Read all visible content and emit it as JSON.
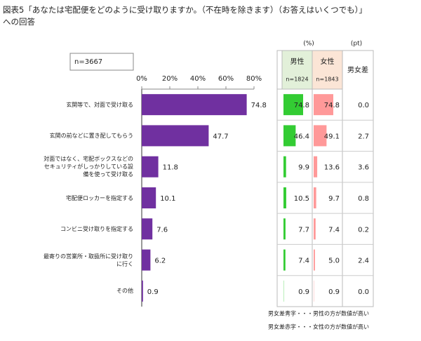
{
  "title": [
    "図表5「あなたは宅配便をどのように受け取りますか。（不在時を除きます）（お答えはいくつでも）」",
    "への回答"
  ],
  "chart_data": {
    "type": "bar",
    "orientation": "horizontal",
    "sample_label": "n=3667",
    "categories": [
      "玄関等で、対面で受け取る",
      "玄関の前などに置き配してもらう",
      "対面ではなく、宅配ボックスなどのセキュリティがしっかりしている設備を使って受け取る",
      "宅配便ロッカーを指定する",
      "コンビニ受け取りを指定する",
      "最寄りの営業所・取扱所に受け取りに行く",
      "その他"
    ],
    "values": [
      74.8,
      47.7,
      11.8,
      10.1,
      7.6,
      6.2,
      0.9
    ],
    "color": "#7030a0",
    "xlim": [
      0,
      80
    ],
    "xticks": [
      {
        "value": 0,
        "label": "0%"
      },
      {
        "value": 20,
        "label": "20%"
      },
      {
        "value": 40,
        "label": "40%"
      },
      {
        "value": 60,
        "label": "60%"
      },
      {
        "value": 80,
        "label": "80%"
      }
    ]
  },
  "table": {
    "unit_pct": "(%)",
    "unit_pt": "(pt)",
    "columns": [
      {
        "name": "男性",
        "n": "n=1824",
        "color": "#33cc33",
        "header_color": "#e2f0d9",
        "values": [
          74.8,
          46.4,
          9.9,
          10.5,
          7.7,
          7.4,
          0.9
        ]
      },
      {
        "name": "女性",
        "n": "n=1843",
        "color": "#ff9999",
        "header_color": "#fbe5d6",
        "values": [
          74.8,
          49.1,
          13.6,
          9.7,
          7.4,
          5.0,
          0.9
        ],
        "value_labels": [
          "74.8",
          "49.1",
          "13.6",
          "9.7",
          "7.4",
          "5.0",
          "0.9"
        ]
      }
    ],
    "diff": {
      "name": "男女差",
      "values": [
        0.0,
        2.7,
        3.6,
        0.8,
        0.2,
        2.4,
        0.0
      ],
      "value_labels": [
        "0.0",
        "2.7",
        "3.6",
        "0.8",
        "0.2",
        "2.4",
        "0.0"
      ],
      "colors": [
        "#1f6fc0",
        "#c00000",
        "#c00000",
        "#1f6fc0",
        "#1f6fc0",
        "#1f6fc0",
        "#c00000"
      ]
    }
  },
  "notes": [
    {
      "text": "男女差青字・・・男性の方が数値が高い",
      "color": "#1f6fc0"
    },
    {
      "text": "男女差赤字・・・女性の方が数値が高い",
      "color": "#c00000"
    }
  ]
}
